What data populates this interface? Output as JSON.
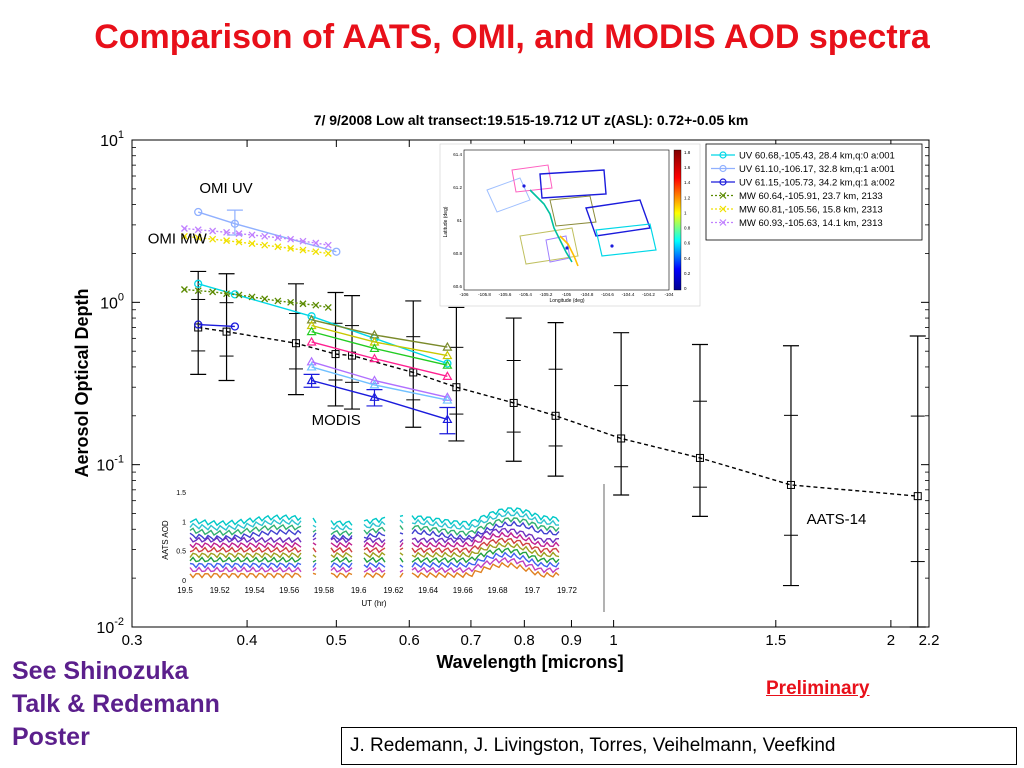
{
  "slide": {
    "title": "Comparison of AATS, OMI, and MODIS AOD spectra",
    "talk_note": [
      "See Shinozuka",
      "Talk  & Redemann",
      "Poster"
    ],
    "preliminary": "Preliminary",
    "authors": "J. Redemann, J. Livingston, Torres, Veihelmann, Veefkind"
  },
  "chart_data": {
    "type": "line",
    "title": "7/ 9/2008  Low alt transect:19.515-19.712 UT    z(ASL): 0.72+-0.05 km",
    "xlabel": "Wavelength [microns]",
    "ylabel": "Aerosol Optical Depth",
    "x_scale": "log",
    "y_scale": "log",
    "xlim": [
      0.3,
      2.2
    ],
    "ylim": [
      0.01,
      10
    ],
    "xticks": [
      0.3,
      0.4,
      0.5,
      0.6,
      0.7,
      0.8,
      0.9,
      1,
      1.5,
      2,
      2.2
    ],
    "xtick_labels": [
      "0.3",
      "0.4",
      "0.5",
      "0.6",
      "0.7",
      "0.8",
      "0.9",
      "1",
      "1.5",
      "2",
      "2.2"
    ],
    "yticks": [
      0.01,
      0.1,
      1,
      10
    ],
    "ytick_labels": [
      {
        "base": "10",
        "exp": "-2"
      },
      {
        "base": "10",
        "exp": "-1"
      },
      {
        "base": "10",
        "exp": "0"
      },
      {
        "base": "10",
        "exp": "1"
      }
    ],
    "legend_position": "top-right",
    "annotations": [
      {
        "text": "OMI UV",
        "x": 0.355,
        "y": 4.7
      },
      {
        "text": "OMI MW",
        "x": 0.312,
        "y": 2.3
      },
      {
        "text": "MODIS",
        "x": 0.47,
        "y": 0.175
      },
      {
        "text": "AATS-14",
        "x": 1.62,
        "y": 0.043
      }
    ],
    "series": [
      {
        "name": "AATS-14",
        "color": "#000000",
        "dash": "4,3",
        "marker": "square",
        "x": [
          0.354,
          0.38,
          0.452,
          0.499,
          0.52,
          0.606,
          0.675,
          0.779,
          0.865,
          1.019,
          1.241,
          1.558,
          2.139
        ],
        "y": [
          0.7,
          0.66,
          0.56,
          0.48,
          0.47,
          0.37,
          0.3,
          0.24,
          0.2,
          0.145,
          0.11,
          0.075,
          0.064
        ],
        "err_lo": [
          0.36,
          0.33,
          0.27,
          0.23,
          0.22,
          0.17,
          0.14,
          0.105,
          0.085,
          0.065,
          0.048,
          0.018,
          0.01
        ],
        "err_hi": [
          1.55,
          1.5,
          1.3,
          1.15,
          1.1,
          1.02,
          0.93,
          0.8,
          0.75,
          0.65,
          0.55,
          0.54,
          0.62
        ]
      },
      {
        "name": "UV  60.68,-105.43, 28.4 km,q:0 a:001",
        "color": "#00d8e8",
        "dash": "",
        "marker": "circle",
        "x": [
          0.354,
          0.388,
          0.47,
          0.55,
          0.66
        ],
        "y": [
          1.3,
          1.12,
          0.82,
          0.6,
          0.42
        ]
      },
      {
        "name": "UV  61.10,-106.17, 32.8 km,q:1 a:001",
        "color": "#90b0ff",
        "dash": "",
        "marker": "circle",
        "x": [
          0.354,
          0.388,
          0.5
        ],
        "y": [
          3.6,
          3.05,
          2.05
        ],
        "err_lo": [
          null,
          2.6,
          null
        ],
        "err_hi": [
          null,
          3.7,
          null
        ]
      },
      {
        "name": "UV  61.15,-105.73, 34.2 km,q:1 a:002",
        "color": "#1b1bdc",
        "dash": "",
        "marker": "circle",
        "x": [
          0.354,
          0.388
        ],
        "y": [
          0.73,
          0.71
        ]
      },
      {
        "name": "MW  60.64,-105.91, 23.7 km, 2133",
        "color": "#5a8a00",
        "dash": "2,2",
        "marker": "x",
        "x": [
          0.342,
          0.354,
          0.367,
          0.38,
          0.392,
          0.405,
          0.418,
          0.432,
          0.446,
          0.46,
          0.475,
          0.49
        ],
        "y": [
          1.2,
          1.18,
          1.16,
          1.13,
          1.11,
          1.08,
          1.05,
          1.02,
          1.0,
          0.98,
          0.96,
          0.93
        ]
      },
      {
        "name": "MW  60.81,-105.56, 15.8 km, 2313",
        "color": "#f0e000",
        "dash": "2,2",
        "marker": "x",
        "x": [
          0.342,
          0.354,
          0.367,
          0.38,
          0.392,
          0.405,
          0.418,
          0.432,
          0.446,
          0.46,
          0.475,
          0.49
        ],
        "y": [
          2.55,
          2.5,
          2.45,
          2.4,
          2.35,
          2.3,
          2.25,
          2.2,
          2.15,
          2.1,
          2.05,
          2.0
        ]
      },
      {
        "name": "MW  60.93,-105.63, 14.1 km, 2313",
        "color": "#c080ff",
        "dash": "2,2",
        "marker": "x",
        "x": [
          0.342,
          0.354,
          0.367,
          0.38,
          0.392,
          0.405,
          0.418,
          0.432,
          0.446,
          0.46,
          0.475,
          0.49
        ],
        "y": [
          2.85,
          2.8,
          2.75,
          2.7,
          2.65,
          2.6,
          2.55,
          2.5,
          2.45,
          2.38,
          2.32,
          2.25
        ]
      },
      {
        "name": "",
        "color": "#7a8a2a",
        "dash": "",
        "marker": "triangle",
        "x": [
          0.47,
          0.55,
          0.66
        ],
        "y": [
          0.78,
          0.63,
          0.53
        ]
      },
      {
        "name": "",
        "color": "#c8c800",
        "dash": "",
        "marker": "triangle",
        "x": [
          0.47,
          0.55,
          0.66
        ],
        "y": [
          0.72,
          0.57,
          0.47
        ]
      },
      {
        "name": "",
        "color": "#22cc22",
        "dash": "",
        "marker": "triangle",
        "x": [
          0.47,
          0.55,
          0.66
        ],
        "y": [
          0.66,
          0.52,
          0.41
        ]
      },
      {
        "name": "",
        "color": "#ff2090",
        "dash": "",
        "marker": "triangle",
        "x": [
          0.47,
          0.55,
          0.66
        ],
        "y": [
          0.57,
          0.45,
          0.35
        ]
      },
      {
        "name": "",
        "color": "#b070ff",
        "dash": "",
        "marker": "triangle",
        "x": [
          0.47,
          0.55,
          0.66
        ],
        "y": [
          0.43,
          0.33,
          0.26
        ]
      },
      {
        "name": "",
        "color": "#70c0ff",
        "dash": "",
        "marker": "triangle",
        "x": [
          0.47,
          0.55,
          0.66
        ],
        "y": [
          0.4,
          0.31,
          0.25
        ]
      },
      {
        "name": "",
        "color": "#1b1bdc",
        "dash": "",
        "marker": "triangle",
        "x": [
          0.47,
          0.55,
          0.66
        ],
        "y": [
          0.33,
          0.26,
          0.19
        ],
        "err_lo": [
          0.3,
          0.23,
          0.155
        ],
        "err_hi": [
          0.36,
          0.29,
          0.225
        ]
      }
    ],
    "inset_map": {
      "xlabel": "Longitude (deg)",
      "ylabel": "Latitude (deg)",
      "xticks": [
        "-106",
        "-105.8",
        "-105.6",
        "-105.4",
        "-105.2",
        "-105",
        "-104.8",
        "-104.6",
        "-104.4",
        "-104.2",
        "-104"
      ],
      "yticks": [
        "61.4",
        "61.2",
        "61",
        "60.8",
        "60.6"
      ],
      "colorbar_ticks": [
        "1.8",
        "1.6",
        "1.4",
        "1.2",
        "1",
        "0.8",
        "0.6",
        "0.4",
        "0.2",
        "0"
      ]
    },
    "inset_timeseries": {
      "xlabel": "UT (hr)",
      "ylabel": "AATS AOD",
      "xticks": [
        "19.5",
        "19.52",
        "19.54",
        "19.56",
        "19.58",
        "19.6",
        "19.62",
        "19.64",
        "19.66",
        "19.68",
        "19.7",
        "19.72"
      ],
      "yticks": [
        "1.5",
        "1",
        "0.5",
        "0"
      ]
    }
  }
}
